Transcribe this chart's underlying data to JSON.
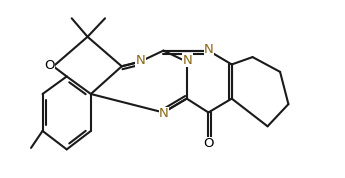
{
  "bg_color": "#ffffff",
  "bond_color": "#1a1a1a",
  "N_color": "#8B6914",
  "O_color": "#1a1a1a",
  "lw": 1.5,
  "fs": 9.5,
  "xlim": [
    -0.5,
    11.0
  ],
  "ylim": [
    -0.5,
    6.0
  ]
}
